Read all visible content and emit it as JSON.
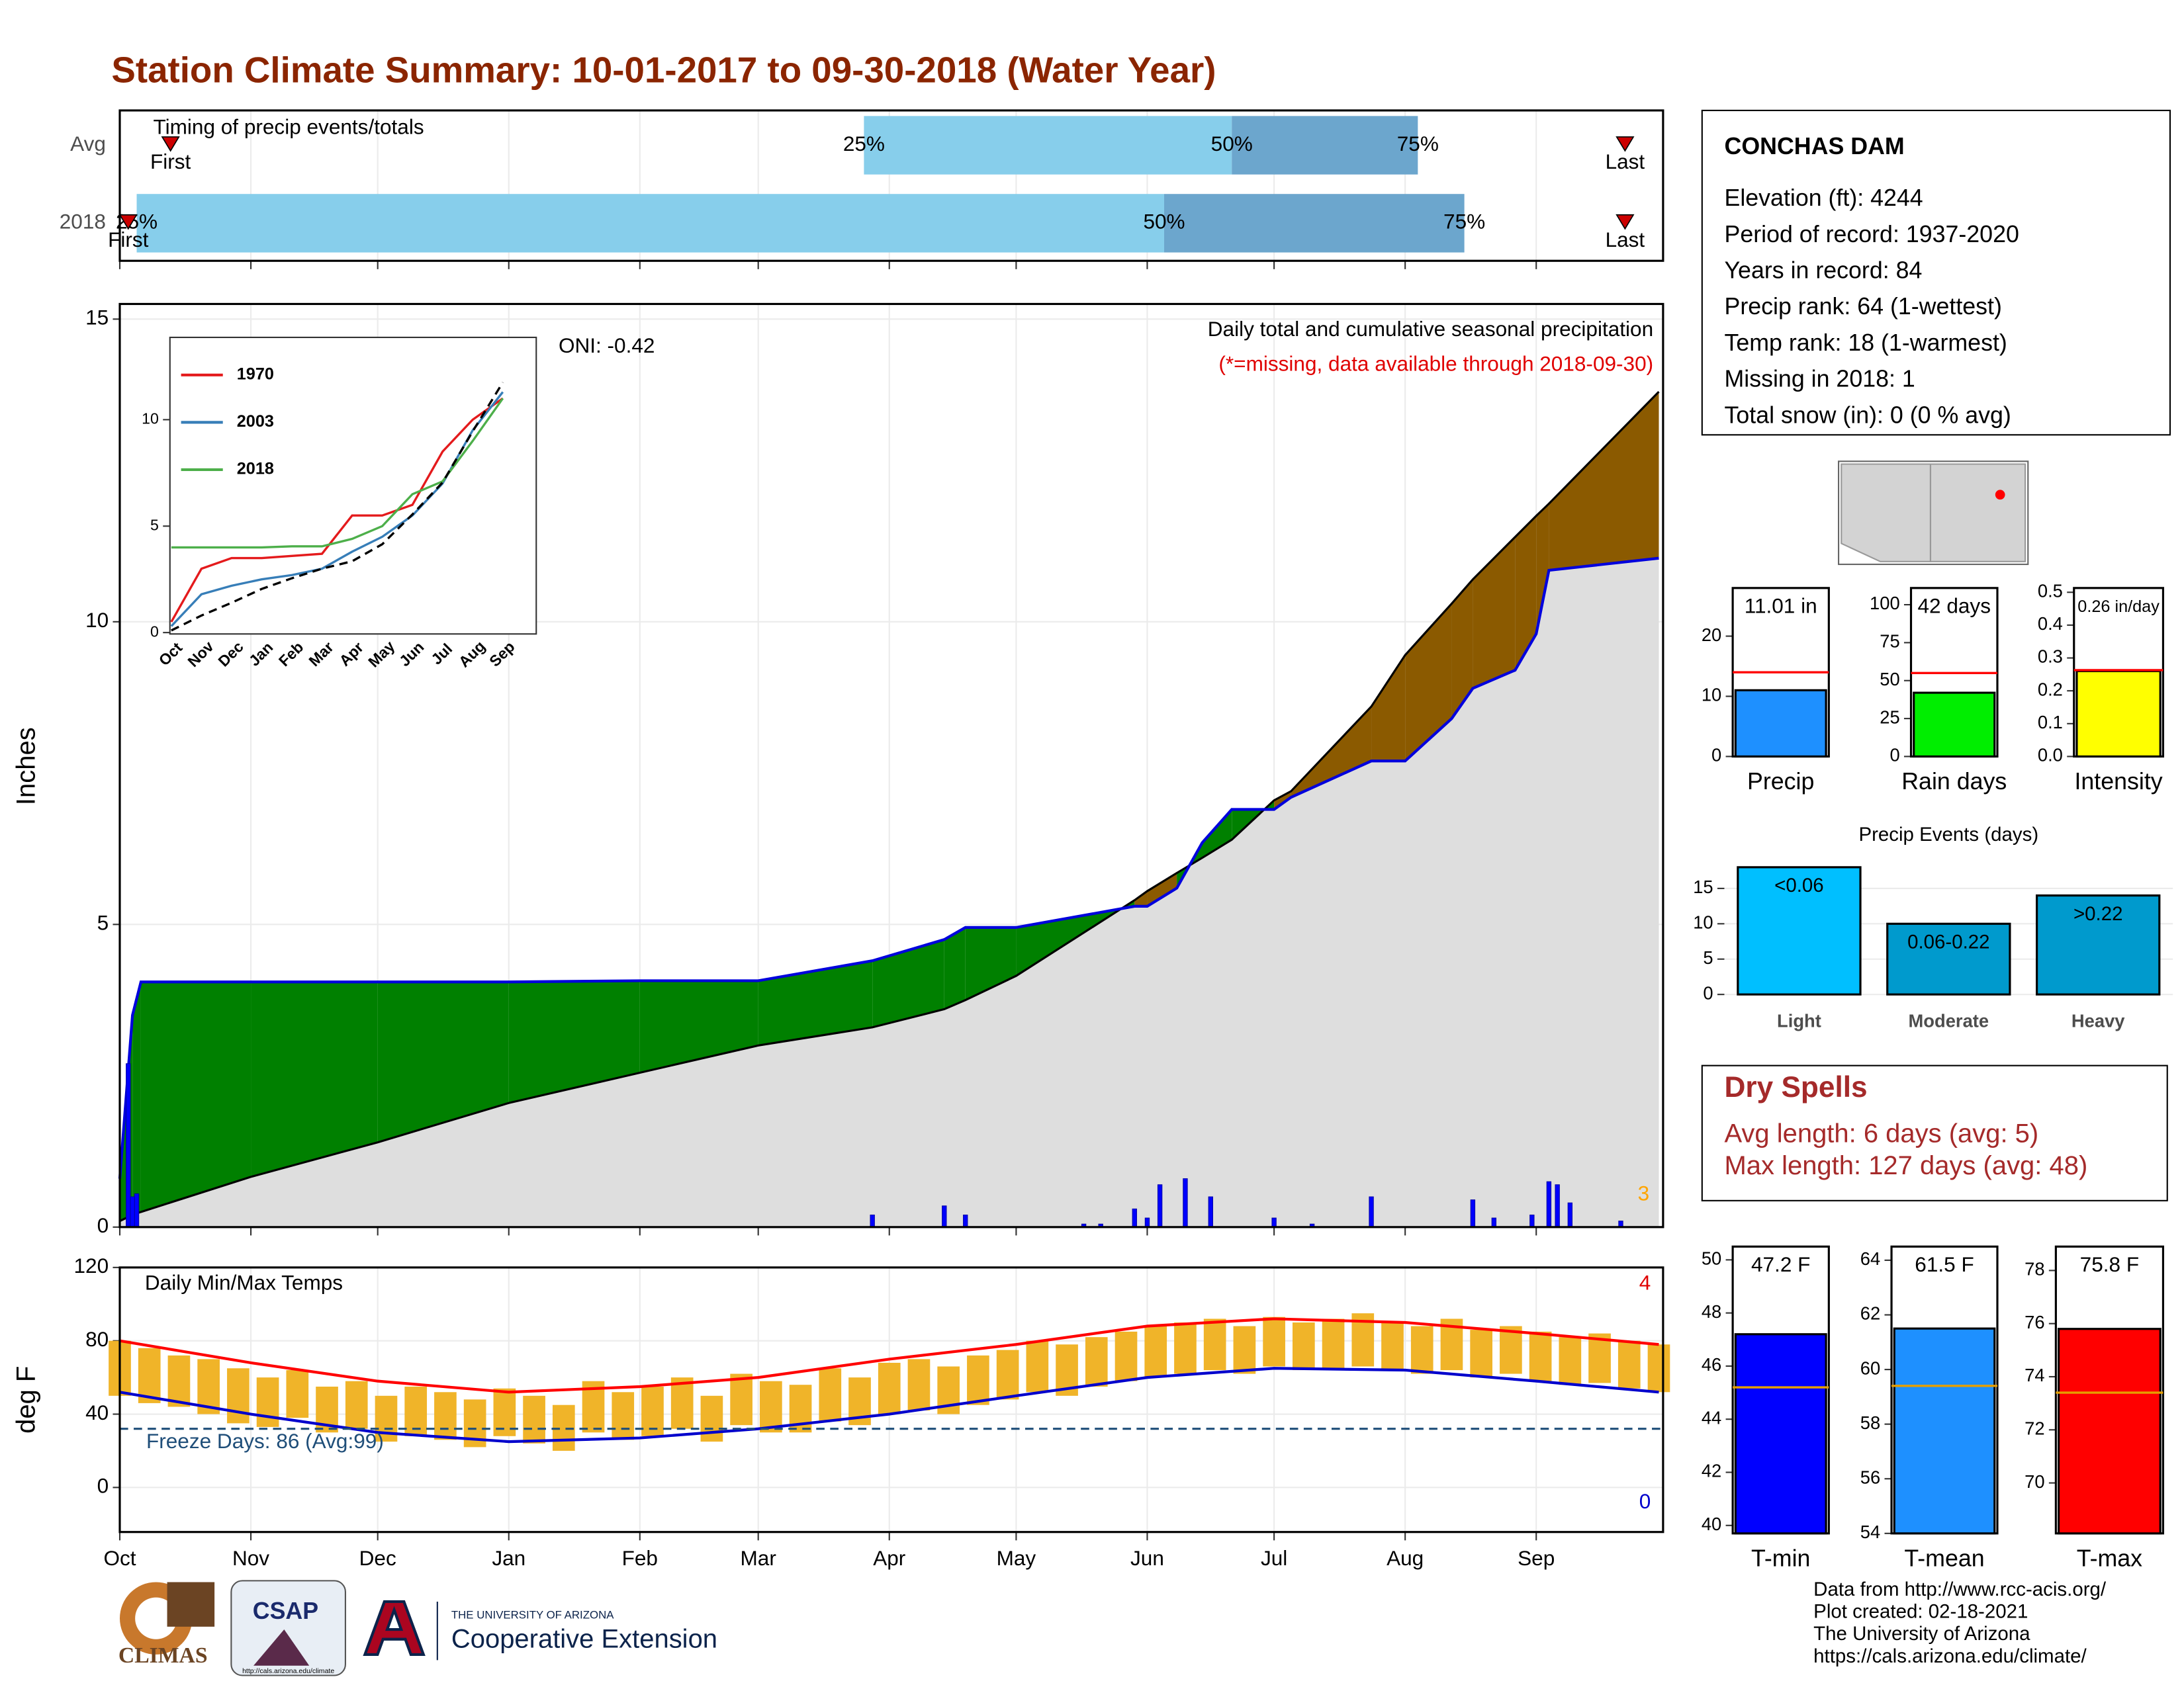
{
  "title": "Station Climate Summary: 10-01-2017 to 09-30-2018 (Water Year)",
  "month_axis": {
    "labels": [
      "Oct",
      "Nov",
      "Dec",
      "Jan",
      "Feb",
      "Mar",
      "Apr",
      "May",
      "Jun",
      "Jul",
      "Aug",
      "Sep"
    ],
    "days": [
      0,
      31,
      61,
      92,
      123,
      151,
      182,
      212,
      243,
      273,
      304,
      335
    ]
  },
  "station": {
    "name": "CONCHAS DAM",
    "lines": [
      "Elevation (ft): 4244",
      "Period of record: 1937-2020",
      "Years in record: 84",
      "Precip rank: 64 (1-wettest)",
      "Temp rank: 18 (1-warmest)",
      "Missing in 2018: 1",
      "Total snow (in): 0 (0 % avg)"
    ]
  },
  "dry_spells": {
    "title": "Dry Spells",
    "lines": [
      "Avg length: 6 days (avg: 5)",
      "Max length: 127 days (avg: 48)"
    ]
  },
  "footer": [
    "Data from http://www.rcc-acis.org/",
    "Plot created: 02-18-2021",
    "The University of Arizona",
    "https://cals.arizona.edu/climate/"
  ],
  "logos": {
    "climas": "CLIMAS",
    "csap": "CSAP",
    "csap_url": "http://cals.arizona.edu/climate",
    "ua": "THE UNIVERSITY OF ARIZONA",
    "extension": "Cooperative Extension"
  },
  "chart_data": [
    {
      "type": "timing",
      "subtitle": "Timing of precip events/totals",
      "categories": [
        "Avg",
        "2018"
      ],
      "xlim": [
        0,
        365
      ],
      "first": [
        12,
        2
      ],
      "q25": [
        176,
        4
      ],
      "q50": [
        263,
        247
      ],
      "q75": [
        307,
        318
      ],
      "last": [
        356,
        356
      ],
      "quantile_labels": [
        "25%",
        "50%",
        "75%"
      ],
      "first_label": "First",
      "last_label": "Last",
      "colors": [
        "#87ceeb",
        "#6ca6cd"
      ]
    },
    {
      "type": "cumulative",
      "subtitle": "Daily total and cumulative seasonal precipitation",
      "note": "(*=missing, data available through 2018-09-30)",
      "oni": "ONI: -0.42",
      "ylabel": "Inches",
      "count": 3,
      "xlim": [
        0,
        365
      ],
      "ylim": [
        0,
        15.25
      ],
      "yticks": [
        0,
        5,
        10,
        15
      ],
      "x": [
        0,
        3,
        5,
        31,
        61,
        92,
        123,
        151,
        178,
        195,
        200,
        212,
        240,
        243,
        250,
        256,
        263,
        273,
        277,
        296,
        304,
        315,
        320,
        330,
        335,
        338,
        364
      ],
      "average": [
        0.1,
        0.2,
        0.25,
        0.83,
        1.4,
        2.05,
        2.55,
        3.0,
        3.3,
        3.6,
        3.75,
        4.15,
        5.4,
        5.55,
        5.85,
        6.1,
        6.4,
        7.05,
        7.2,
        8.6,
        9.45,
        10.3,
        10.7,
        11.4,
        11.75,
        11.95,
        13.8
      ],
      "observed": [
        0.8,
        3.5,
        4.05,
        4.05,
        4.05,
        4.05,
        4.07,
        4.07,
        4.4,
        4.75,
        4.95,
        4.95,
        5.3,
        5.3,
        5.6,
        6.35,
        6.9,
        6.9,
        7.1,
        7.7,
        7.7,
        8.4,
        8.9,
        9.2,
        9.8,
        10.85,
        11.05
      ],
      "daily_x": [
        2,
        3,
        4,
        178,
        195,
        200,
        228,
        232,
        240,
        243,
        246,
        252,
        258,
        273,
        282,
        296,
        320,
        325,
        334,
        338,
        340,
        343,
        355
      ],
      "daily_values": [
        2.7,
        0.5,
        0.55,
        0.2,
        0.35,
        0.2,
        0.05,
        0.05,
        0.3,
        0.15,
        0.7,
        0.8,
        0.5,
        0.15,
        0.05,
        0.5,
        0.45,
        0.15,
        0.2,
        0.75,
        0.7,
        0.4,
        0.1
      ],
      "colors": {
        "average": "#dedede",
        "observed": "#0000dd",
        "wetter": "#008000",
        "drier": "#8b5a00",
        "count": "#ffa500"
      }
    },
    {
      "type": "line",
      "categories": [
        "Oct",
        "Nov",
        "Dec",
        "Jan",
        "Feb",
        "Mar",
        "Apr",
        "May",
        "Jun",
        "Jul",
        "Aug",
        "Sep"
      ],
      "ylim": [
        0,
        13.8
      ],
      "yticks": [
        0,
        5,
        10
      ],
      "series": [
        {
          "name": "1970",
          "color": "#e41a1c",
          "values": [
            0.5,
            3.0,
            3.5,
            3.5,
            3.6,
            3.7,
            5.5,
            5.5,
            6.0,
            8.5,
            10.0,
            11.0
          ]
        },
        {
          "name": "2003",
          "color": "#377eb8",
          "values": [
            0.3,
            1.8,
            2.2,
            2.5,
            2.7,
            3.0,
            3.8,
            4.5,
            5.5,
            7.0,
            9.5,
            11.3
          ]
        },
        {
          "name": "2018",
          "color": "#4daf4a",
          "values": [
            4.0,
            4.0,
            4.0,
            4.0,
            4.05,
            4.05,
            4.4,
            5.0,
            6.5,
            7.1,
            9.0,
            11.0
          ]
        },
        {
          "color": "#000000",
          "dashed": true,
          "values": [
            0.1,
            0.8,
            1.4,
            2.05,
            2.55,
            3.0,
            3.35,
            4.15,
            5.55,
            7.05,
            9.45,
            11.75
          ]
        }
      ]
    },
    {
      "type": "temps",
      "subtitle": "Daily Min/Max Temps",
      "ylabel": "deg F",
      "xlim": [
        0,
        365
      ],
      "ylim": [
        -24.3,
        120
      ],
      "yticks": [
        0,
        40,
        80,
        120
      ],
      "x": [
        0,
        7,
        14,
        21,
        28,
        35,
        42,
        49,
        56,
        63,
        70,
        77,
        84,
        91,
        98,
        105,
        112,
        119,
        126,
        133,
        140,
        147,
        154,
        161,
        168,
        175,
        182,
        189,
        196,
        203,
        210,
        217,
        224,
        231,
        238,
        245,
        252,
        259,
        266,
        273,
        280,
        287,
        294,
        301,
        308,
        315,
        322,
        329,
        336,
        343,
        350,
        357,
        364
      ],
      "daily_max": [
        80,
        76,
        72,
        70,
        65,
        60,
        64,
        55,
        58,
        50,
        55,
        52,
        48,
        54,
        50,
        45,
        58,
        52,
        55,
        60,
        50,
        62,
        58,
        56,
        65,
        60,
        68,
        70,
        66,
        72,
        75,
        80,
        78,
        82,
        85,
        88,
        90,
        92,
        88,
        93,
        90,
        92,
        95,
        90,
        88,
        92,
        86,
        88,
        85,
        82,
        84,
        80,
        78
      ],
      "daily_min": [
        50,
        46,
        44,
        40,
        35,
        33,
        38,
        30,
        32,
        25,
        28,
        26,
        22,
        28,
        24,
        20,
        30,
        26,
        28,
        32,
        25,
        34,
        30,
        30,
        36,
        34,
        40,
        42,
        40,
        45,
        48,
        52,
        50,
        55,
        58,
        60,
        62,
        64,
        62,
        66,
        64,
        65,
        66,
        64,
        62,
        64,
        60,
        62,
        58,
        56,
        57,
        54,
        52
      ],
      "normal_x": [
        0,
        31,
        61,
        92,
        123,
        151,
        182,
        212,
        243,
        273,
        304,
        335,
        364
      ],
      "normal_max": [
        80,
        68,
        58,
        52,
        55,
        60,
        70,
        78,
        88,
        92,
        90,
        84,
        78
      ],
      "normal_min": [
        52,
        40,
        30,
        25,
        27,
        32,
        40,
        50,
        60,
        65,
        64,
        58,
        52
      ],
      "freeze": 32,
      "freeze_label": "Freeze Days: 86 (Avg:99)",
      "record_high_count": 4,
      "record_low_count": 0,
      "colors": {
        "range": "#f0b429",
        "normal_max": "#ff0000",
        "normal_min": "#0000cc",
        "freeze": "#1f4e79"
      }
    },
    {
      "type": "gauge",
      "title": "Precip",
      "value": 11.01,
      "value_label": "11.01 in",
      "average": 14,
      "ylim": [
        0,
        28
      ],
      "yticks": [
        0,
        10,
        20
      ],
      "color": "#1e90ff",
      "avg_color": "#ff0000"
    },
    {
      "type": "gauge",
      "title": "Rain days",
      "value": 42,
      "value_label": "42 days",
      "average": 55,
      "ylim": [
        0,
        111
      ],
      "yticks": [
        0,
        25,
        50,
        75,
        100
      ],
      "color": "#00ee00",
      "avg_color": "#ff0000"
    },
    {
      "type": "gauge",
      "title": "Intensity",
      "value": 0.26,
      "value_label": "0.26 in/day",
      "average": 0.263,
      "ylim": [
        0,
        0.513
      ],
      "yticks": [
        {
          "value": 0,
          "label": "0.0"
        },
        0.1,
        0.2,
        0.3,
        0.4,
        0.5
      ],
      "color": "#ffff00",
      "avg_color": "#ff0000"
    },
    {
      "type": "bar",
      "title": "Precip Events (days)",
      "categories": [
        "Light",
        "Moderate",
        "Heavy"
      ],
      "values": [
        18,
        10,
        14
      ],
      "value_labels": [
        "<0.06",
        "0.06-0.22",
        ">0.22"
      ],
      "ylim": [
        -1.2,
        18.5
      ],
      "yticks": [
        0,
        5,
        10,
        15
      ],
      "colors": [
        "#00bfff",
        "#009acd",
        "#009acd"
      ],
      "grid": true
    },
    {
      "type": "gauge",
      "title": "T-min",
      "value": 47.2,
      "value_label": "47.2 F",
      "average": 45.2,
      "ylim": [
        39.7,
        50.5
      ],
      "yticks": [
        40,
        42,
        44,
        46,
        48,
        50
      ],
      "color": "#0000ff",
      "avg_color": "#e69f00"
    },
    {
      "type": "gauge",
      "title": "T-mean",
      "value": 61.5,
      "value_label": "61.5 F",
      "average": 59.4,
      "ylim": [
        54,
        64.5
      ],
      "yticks": [
        54,
        56,
        58,
        60,
        62,
        64
      ],
      "color": "#1e90ff",
      "avg_color": "#e69f00"
    },
    {
      "type": "gauge",
      "title": "T-max",
      "value": 75.8,
      "value_label": "75.8 F",
      "average": 73.4,
      "ylim": [
        68.1,
        78.9
      ],
      "yticks": [
        70,
        72,
        74,
        76,
        78
      ],
      "color": "#ff0000",
      "avg_color": "#e69f00"
    }
  ]
}
